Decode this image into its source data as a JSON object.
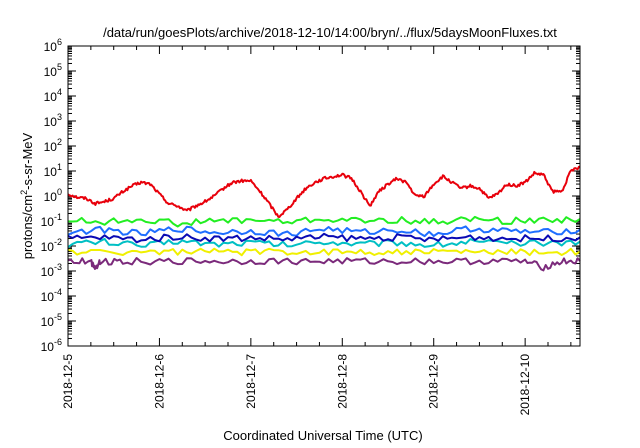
{
  "chart_data": {
    "type": "line",
    "title": "/data/run/goesPlots/archive/2018-12-10/14:00/bryn/../flux/5daysMoonFluxes.txt",
    "xlabel": "Coordinated Universal Time (UTC)",
    "ylabel": {
      "base": "protons/cm",
      "sup": "2",
      "rest": "-s-sr-MeV"
    },
    "y_scale": "log",
    "ylim_exp": [
      -6,
      6
    ],
    "y_ticks": [
      {
        "base": "10",
        "exp": "6"
      },
      {
        "base": "10",
        "exp": "5"
      },
      {
        "base": "10",
        "exp": "4"
      },
      {
        "base": "10",
        "exp": "3"
      },
      {
        "base": "10",
        "exp": "2"
      },
      {
        "base": "10",
        "exp": "1"
      },
      {
        "base": "10",
        "exp": "0"
      },
      {
        "base": "10",
        "exp": "-1"
      },
      {
        "base": "10",
        "exp": "-2"
      },
      {
        "base": "10",
        "exp": "-3"
      },
      {
        "base": "10",
        "exp": "-4"
      },
      {
        "base": "10",
        "exp": "-5"
      },
      {
        "base": "10",
        "exp": "-6"
      }
    ],
    "x_ticks": [
      "2018-12-5",
      "2018-12-6",
      "2018-12-7",
      "2018-12-8",
      "2018-12-9",
      "2018-12-10"
    ],
    "xlim_days": [
      0,
      5.6
    ],
    "grid": false,
    "series": [
      {
        "color": "#e8000b",
        "x": [
          0,
          0.1,
          0.2,
          0.3,
          0.4,
          0.5,
          0.6,
          0.7,
          0.8,
          0.9,
          1.0,
          1.1,
          1.2,
          1.3,
          1.4,
          1.5,
          1.6,
          1.7,
          1.8,
          1.9,
          2.0,
          2.1,
          2.2,
          2.3,
          2.4,
          2.5,
          2.6,
          2.7,
          2.8,
          2.9,
          3.0,
          3.1,
          3.2,
          3.3,
          3.4,
          3.5,
          3.6,
          3.7,
          3.8,
          3.9,
          4.0,
          4.1,
          4.2,
          4.3,
          4.4,
          4.5,
          4.6,
          4.7,
          4.8,
          4.9,
          5.0,
          5.1,
          5.2,
          5.3,
          5.4,
          5.5,
          5.6
        ],
        "y": [
          1.2,
          0.9,
          0.8,
          0.5,
          0.6,
          0.8,
          1.5,
          2.5,
          3.5,
          3.0,
          1.2,
          0.5,
          0.4,
          0.25,
          0.4,
          0.6,
          1.0,
          2.0,
          3.5,
          4.0,
          4.0,
          1.5,
          0.5,
          0.15,
          0.3,
          0.8,
          2.0,
          3.5,
          5.0,
          6.0,
          7.0,
          5.0,
          1.5,
          0.4,
          1.5,
          3.0,
          5.0,
          3.5,
          1.0,
          1.0,
          3.0,
          6.0,
          3.5,
          2.0,
          2.5,
          2.0,
          0.8,
          1.2,
          3.0,
          2.5,
          3.5,
          8.0,
          7.0,
          1.5,
          1.5,
          10.0,
          15.0
        ]
      },
      {
        "color": "#22ee22",
        "x": [
          0,
          0.4,
          0.8,
          1.2,
          1.6,
          2.0,
          2.4,
          2.8,
          3.2,
          3.6,
          4.0,
          4.4,
          4.8,
          5.2,
          5.6
        ],
        "y": [
          0.11,
          0.09,
          0.12,
          0.08,
          0.1,
          0.11,
          0.09,
          0.12,
          0.1,
          0.11,
          0.09,
          0.12,
          0.1,
          0.11,
          0.12
        ]
      },
      {
        "color": "#1e6eff",
        "x": [
          0,
          0.4,
          0.8,
          1.2,
          1.6,
          2.0,
          2.4,
          2.8,
          3.2,
          3.6,
          4.0,
          4.4,
          4.8,
          5.2,
          5.6
        ],
        "y": [
          0.035,
          0.045,
          0.03,
          0.05,
          0.035,
          0.04,
          0.03,
          0.05,
          0.035,
          0.045,
          0.03,
          0.05,
          0.04,
          0.035,
          0.045
        ]
      },
      {
        "color": "#00bfc4",
        "x": [
          0,
          0.4,
          0.8,
          1.2,
          1.6,
          2.0,
          2.4,
          2.8,
          3.2,
          3.6,
          4.0,
          4.4,
          4.8,
          5.2,
          5.6
        ],
        "y": [
          0.012,
          0.015,
          0.01,
          0.016,
          0.012,
          0.014,
          0.011,
          0.015,
          0.012,
          0.014,
          0.011,
          0.015,
          0.012,
          0.013,
          0.015
        ]
      },
      {
        "color": "#0a0ab4",
        "x": [
          0,
          0.4,
          0.8,
          1.2,
          1.6,
          2.0,
          2.4,
          2.8,
          3.2,
          3.6,
          4.0,
          4.4,
          4.8,
          5.2,
          5.6
        ],
        "y": [
          0.02,
          0.022,
          0.018,
          0.024,
          0.02,
          0.021,
          0.019,
          0.023,
          0.02,
          0.022,
          0.018,
          0.023,
          0.02,
          0.02,
          0.022
        ]
      },
      {
        "color": "#f0f000",
        "x": [
          0,
          0.4,
          0.8,
          1.2,
          1.6,
          2.0,
          2.4,
          2.8,
          3.2,
          3.6,
          4.0,
          4.4,
          4.8,
          5.2,
          5.6
        ],
        "y": [
          0.006,
          0.0055,
          0.006,
          0.0058,
          0.006,
          0.0056,
          0.006,
          0.0057,
          0.006,
          0.0056,
          0.006,
          0.0057,
          0.0059,
          0.0056,
          0.006
        ]
      },
      {
        "color": "#7b2a7b",
        "x": [
          0,
          0.25,
          0.3,
          0.35,
          0.6,
          1.0,
          1.4,
          1.8,
          2.2,
          2.6,
          3.0,
          3.4,
          3.8,
          4.2,
          4.6,
          5.0,
          5.2,
          5.4,
          5.6
        ],
        "y": [
          0.0025,
          0.0024,
          0.0014,
          0.0024,
          0.0025,
          0.0024,
          0.0025,
          0.0024,
          0.0025,
          0.0024,
          0.0025,
          0.0024,
          0.0025,
          0.0024,
          0.0025,
          0.0024,
          0.0014,
          0.0024,
          0.0025
        ]
      }
    ]
  }
}
